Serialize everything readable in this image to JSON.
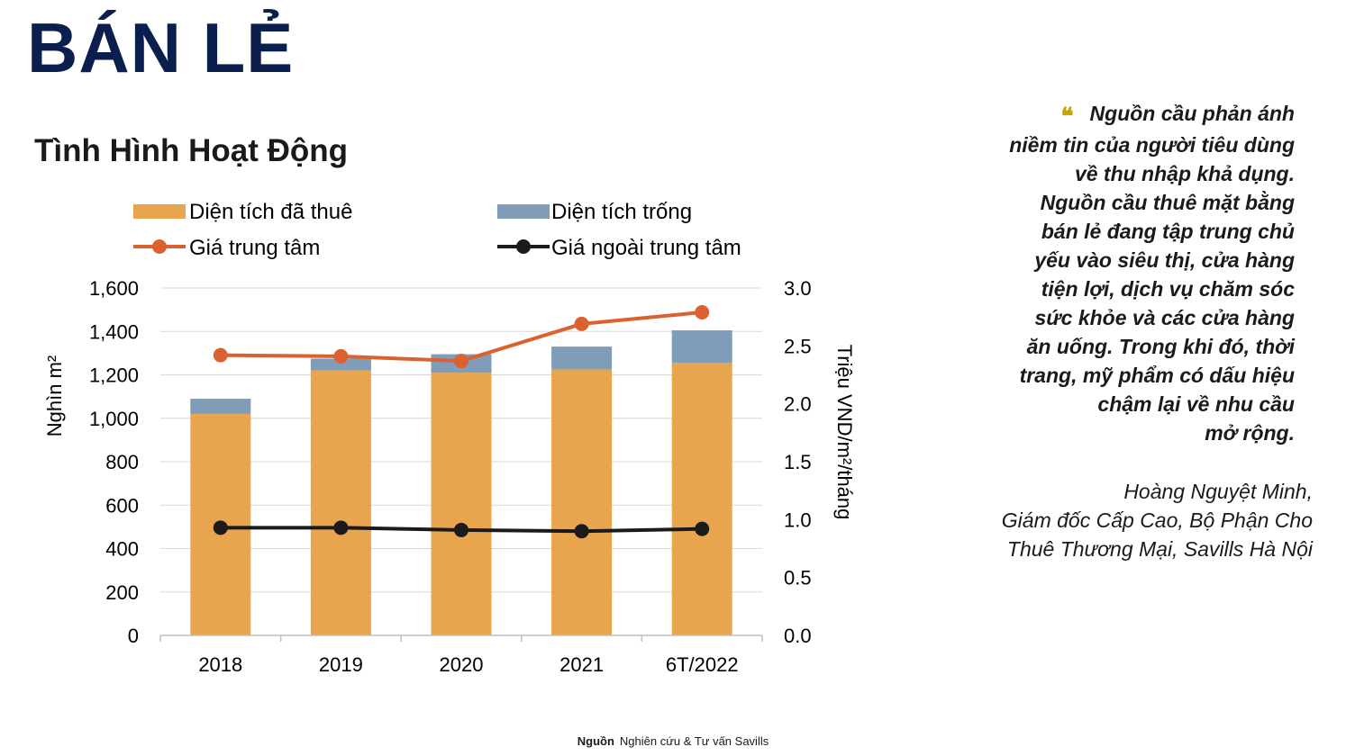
{
  "page": {
    "title": "BÁN LẺ",
    "chart_heading": "Tình Hình Hoạt Động"
  },
  "quote": {
    "text": "Nguồn cầu phản ánh niềm tin của người tiêu dùng về thu nhập khả dụng. Nguồn cầu thuê mặt bằng bán lẻ đang tập trung chủ yếu vào siêu thị, cửa hàng tiện lợi, dịch vụ chăm sóc sức khỏe và các cửa hàng ăn uống. Trong khi đó, thời trang, mỹ phẩm có dấu hiệu chậm lại về nhu cầu mở rộng.",
    "lines": [
      "Nguồn cầu phản ánh",
      "niềm tin của người tiêu dùng",
      "về thu nhập khả dụng.",
      "Nguồn cầu thuê mặt bằng",
      "bán lẻ đang tập trung chủ",
      "yếu vào siêu thị, cửa hàng",
      "tiện lợi, dịch vụ chăm sóc",
      "sức khỏe và các cửa hàng",
      "ăn uống. Trong khi đó, thời",
      "trang, mỹ phẩm có dấu hiệu",
      "chậm lại về nhu cầu",
      "mở rộng."
    ],
    "author_lines": [
      "Hoàng Nguyệt Minh,",
      "Giám đốc Cấp Cao, Bộ Phận Cho",
      "Thuê Thương Mại, Savills Hà Nội"
    ]
  },
  "source": {
    "label": "Nguồn",
    "text": "Nghiên cứu & Tư vấn Savills"
  },
  "colors": {
    "title": "#0b1f4e",
    "leased": "#e8a54e",
    "vacant": "#7f9db9",
    "center_price": "#dd6031",
    "outside_price": "#1a1a1a",
    "quote_mark": "#c8a400"
  },
  "chart_data": {
    "type": "bar",
    "stacked": true,
    "categories": [
      "2018",
      "2019",
      "2020",
      "2021",
      "6T/2022"
    ],
    "series": [
      {
        "name": "Diện tích đã thuê",
        "type": "bar",
        "axis": "left",
        "values": [
          1020,
          1220,
          1210,
          1225,
          1255
        ]
      },
      {
        "name": "Diện tích trống",
        "type": "bar",
        "axis": "left",
        "values": [
          70,
          55,
          85,
          105,
          150
        ]
      },
      {
        "name": "Giá trung tâm",
        "type": "line",
        "axis": "right",
        "values": [
          2.42,
          2.41,
          2.37,
          2.69,
          2.79
        ]
      },
      {
        "name": "Giá ngoài trung tâm",
        "type": "line",
        "axis": "right",
        "values": [
          0.93,
          0.93,
          0.91,
          0.9,
          0.92
        ]
      }
    ],
    "ylabel": "Nghìn m²",
    "y2label": "Triệu VND/m²/tháng",
    "ylim": [
      0,
      1600
    ],
    "y2lim": [
      0,
      3.0
    ],
    "yticks": [
      "0",
      "200",
      "400",
      "600",
      "800",
      "1,000",
      "1,200",
      "1,400",
      "1,600"
    ],
    "y2ticks": [
      "0.0",
      "0.5",
      "1.0",
      "1.5",
      "2.0",
      "2.5",
      "3.0"
    ],
    "grid": true,
    "legend": "top"
  }
}
